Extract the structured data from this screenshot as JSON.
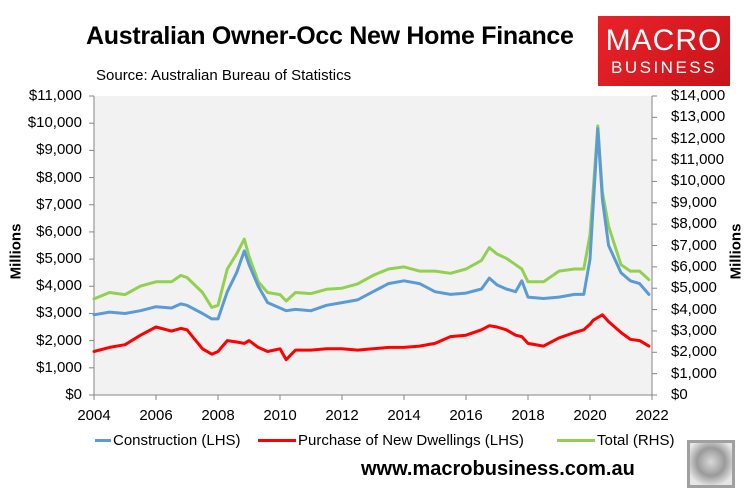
{
  "header": {
    "title": "Australian Owner-Occ New Home Finance",
    "source": "Source: Australian Bureau of Statistics",
    "footer_url": "www.macrobusiness.com.au"
  },
  "logo": {
    "line1": "MACRO",
    "line2": "BUSINESS",
    "color": "#d71920"
  },
  "colors": {
    "construction": "#5b9bd5",
    "purchase": "#ff0000",
    "total": "#92d050",
    "plot_bg": "#f2f2f2",
    "axis": "#868686"
  },
  "chart_data": {
    "type": "line",
    "title": "Australian Owner-Occ New Home Finance",
    "subtitle": "Source: Australian Bureau of Statistics",
    "xlabel": "",
    "ylabel": "Millions",
    "y2label": "Millions",
    "xlim": [
      2004,
      2022
    ],
    "ylim": [
      0,
      11000
    ],
    "y2lim": [
      0,
      14000
    ],
    "x_ticks": [
      "2004",
      "2006",
      "2008",
      "2010",
      "2012",
      "2014",
      "2016",
      "2018",
      "2020",
      "2022"
    ],
    "y_ticks": [
      "$11,000",
      "$10,000",
      "$9,000",
      "$8,000",
      "$7,000",
      "$6,000",
      "$5,000",
      "$4,000",
      "$3,000",
      "$2,000",
      "$1,000",
      "$0"
    ],
    "y2_ticks": [
      "$14,000",
      "$13,000",
      "$12,000",
      "$11,000",
      "$10,000",
      "$9,000",
      "$8,000",
      "$7,000",
      "$6,000",
      "$5,000",
      "$4,000",
      "$3,000",
      "$2,000",
      "$1,000",
      "$0"
    ],
    "grid": false,
    "legend_position": "bottom",
    "x": [
      2004.0,
      2004.5,
      2005.0,
      2005.5,
      2006.0,
      2006.5,
      2006.8,
      2007.0,
      2007.5,
      2007.8,
      2008.0,
      2008.3,
      2008.6,
      2008.85,
      2009.0,
      2009.3,
      2009.6,
      2010.0,
      2010.2,
      2010.5,
      2011.0,
      2011.5,
      2012.0,
      2012.5,
      2013.0,
      2013.5,
      2014.0,
      2014.5,
      2015.0,
      2015.5,
      2016.0,
      2016.5,
      2016.75,
      2017.0,
      2017.3,
      2017.6,
      2017.8,
      2018.0,
      2018.5,
      2019.0,
      2019.5,
      2019.8,
      2020.0,
      2020.1,
      2020.25,
      2020.4,
      2020.6,
      2021.0,
      2021.3,
      2021.6,
      2021.9
    ],
    "series": [
      {
        "name": "Construction (LHS)",
        "axis": "left",
        "color": "#5b9bd5",
        "values": [
          2950,
          3050,
          3000,
          3100,
          3250,
          3200,
          3350,
          3300,
          3000,
          2800,
          2800,
          3800,
          4500,
          5300,
          4800,
          4000,
          3400,
          3200,
          3100,
          3150,
          3100,
          3300,
          3400,
          3500,
          3800,
          4100,
          4200,
          4100,
          3800,
          3700,
          3750,
          3900,
          4300,
          4050,
          3900,
          3800,
          4200,
          3600,
          3550,
          3600,
          3700,
          3700,
          5000,
          6900,
          9800,
          7200,
          5500,
          4500,
          4200,
          4100,
          3700
        ]
      },
      {
        "name": "Purchase of New Dwellings (LHS)",
        "axis": "left",
        "color": "#ff0000",
        "values": [
          1600,
          1750,
          1850,
          2200,
          2500,
          2350,
          2450,
          2400,
          1700,
          1500,
          1600,
          2000,
          1950,
          1900,
          2000,
          1750,
          1600,
          1700,
          1300,
          1650,
          1650,
          1700,
          1700,
          1650,
          1700,
          1750,
          1750,
          1800,
          1900,
          2150,
          2200,
          2400,
          2550,
          2500,
          2400,
          2200,
          2150,
          1900,
          1800,
          2100,
          2300,
          2400,
          2600,
          2750,
          2850,
          2950,
          2700,
          2300,
          2050,
          2000,
          1800
        ]
      },
      {
        "name": "Total (RHS)",
        "axis": "right",
        "color": "#92d050",
        "values": [
          4500,
          4800,
          4700,
          5100,
          5300,
          5300,
          5600,
          5500,
          4800,
          4100,
          4200,
          5900,
          6600,
          7300,
          6500,
          5300,
          4800,
          4700,
          4400,
          4800,
          4750,
          4950,
          5000,
          5200,
          5600,
          5900,
          6000,
          5800,
          5800,
          5700,
          5900,
          6300,
          6900,
          6600,
          6400,
          6100,
          5900,
          5300,
          5300,
          5800,
          5900,
          5900,
          7500,
          9500,
          12600,
          9500,
          7900,
          6100,
          5800,
          5800,
          5400
        ]
      }
    ]
  },
  "legend": [
    {
      "label": "Construction (LHS)",
      "color": "#5b9bd5"
    },
    {
      "label": "Purchase of New Dwellings (LHS)",
      "color": "#ff0000"
    },
    {
      "label": "Total (RHS)",
      "color": "#92d050"
    }
  ]
}
